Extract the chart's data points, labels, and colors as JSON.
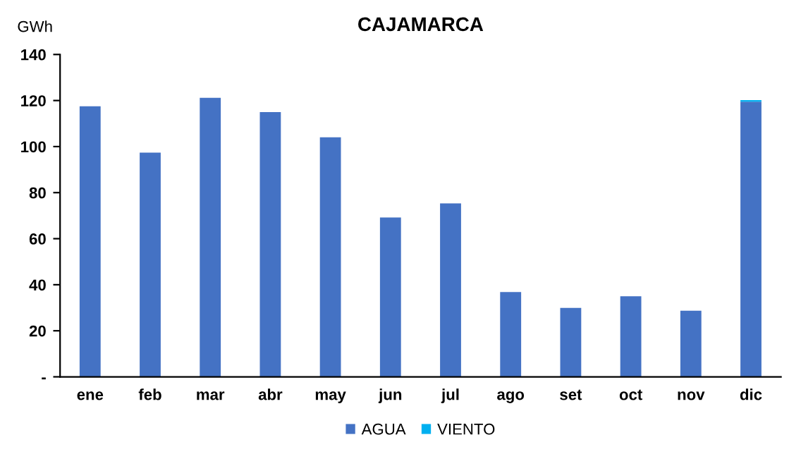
{
  "chart_data": {
    "type": "bar",
    "title": "CAJAMARCA",
    "ylabel": "GWh",
    "stacked": true,
    "categories": [
      "ene",
      "feb",
      "mar",
      "abr",
      "may",
      "jun",
      "jul",
      "ago",
      "set",
      "oct",
      "nov",
      "dic"
    ],
    "series": [
      {
        "name": "AGUA",
        "color": "#4472c4",
        "values": [
          117.5,
          97.4,
          121.2,
          115.0,
          104.0,
          69.2,
          75.3,
          36.8,
          29.9,
          35.0,
          28.7,
          119.5
        ]
      },
      {
        "name": "VIENTO",
        "color": "#00b0f0",
        "values": [
          0,
          0,
          0,
          0,
          0,
          0,
          0,
          0,
          0,
          0,
          0,
          0.7
        ]
      }
    ],
    "ylim": [
      0,
      140
    ],
    "yticks": [
      {
        "value": 0,
        "label": "-"
      },
      20,
      40,
      60,
      80,
      100,
      120,
      140
    ],
    "grid": false,
    "legend": "bottom"
  }
}
